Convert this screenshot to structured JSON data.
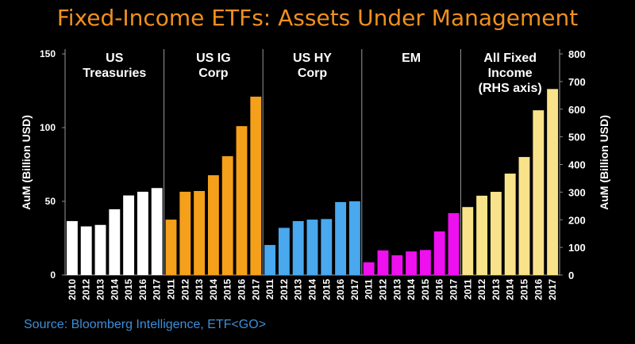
{
  "chart_data": {
    "type": "bar",
    "title": "Fixed-Income ETFs: Assets Under Management",
    "source": "Source: Bloomberg Intelligence, ETF<GO>",
    "ylabel": "AuM (Billion USD)",
    "y2label": "AuM (Billion USD)",
    "ylim": [
      0,
      150
    ],
    "yticks": [
      0,
      50,
      100,
      150
    ],
    "y2lim": [
      0,
      800
    ],
    "y2ticks": [
      0,
      100,
      200,
      300,
      400,
      500,
      600,
      700,
      800
    ],
    "series": [
      {
        "name": "US Treasuries",
        "color": "#ffffff",
        "categories": [
          "2010",
          "2012",
          "2013",
          "2014",
          "2015",
          "2016",
          "2017"
        ],
        "values": [
          36.6,
          33,
          34,
          44.6,
          54,
          56.5,
          59
        ]
      },
      {
        "name": "US IG Corp",
        "color": "#f5a01a",
        "categories": [
          "2011",
          "2012",
          "2013",
          "2014",
          "2015",
          "2016",
          "2017"
        ],
        "values": [
          37.6,
          56.5,
          57,
          67.7,
          80.6,
          101,
          121
        ]
      },
      {
        "name": "US HY Corp",
        "color": "#4aa8ee",
        "categories": [
          "2011",
          "2012",
          "2013",
          "2014",
          "2015",
          "2016",
          "2017"
        ],
        "values": [
          20.4,
          32,
          36.6,
          37.6,
          38,
          49.5,
          50
        ]
      },
      {
        "name": "EM",
        "color": "#ee10ee",
        "categories": [
          "2011",
          "2012",
          "2013",
          "2014",
          "2015",
          "2016",
          "2017"
        ],
        "values": [
          8.6,
          16.7,
          13.4,
          16,
          17,
          29.6,
          42
        ]
      },
      {
        "name": "All Fixed Income (RHS axis)",
        "color": "#f8e38a",
        "axis": "y2",
        "categories": [
          "2011",
          "2012",
          "2013",
          "2014",
          "2015",
          "2016",
          "2017"
        ],
        "values": [
          246,
          287,
          301,
          367,
          427,
          596,
          673
        ]
      }
    ]
  }
}
